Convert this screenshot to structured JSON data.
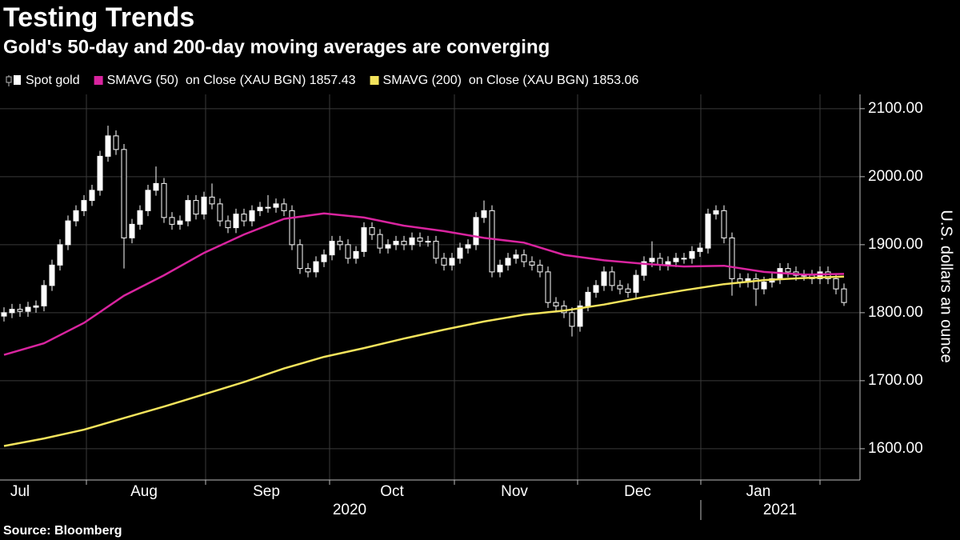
{
  "chart_data": {
    "type": "candlestick",
    "title": "Testing Trends",
    "subtitle": "Gold's 50-day and 200-day moving averages are converging",
    "y_label": "U.S. dollars an ounce",
    "source": "Source: Bloomberg",
    "xlim": [
      -0.5,
      107
    ],
    "xticks": [
      {
        "value": 2,
        "label": "Jul"
      },
      {
        "value": 17.5,
        "label": "Aug"
      },
      {
        "value": 32.8,
        "label": "Sep"
      },
      {
        "value": 48.5,
        "label": "Oct"
      },
      {
        "value": 63.8,
        "label": "Nov"
      },
      {
        "value": 79.2,
        "label": "Dec"
      },
      {
        "value": 94.3,
        "label": "Jan"
      }
    ],
    "month_boundaries": [
      10.3,
      25.2,
      40.7,
      56.3,
      71.7,
      87.1,
      102
    ],
    "year_labels": [
      {
        "value": 43.2,
        "label": "2020"
      },
      {
        "value": 97,
        "label": "2021"
      }
    ],
    "year_boundary": 87.1,
    "ylim": [
      1554,
      2121
    ],
    "yticks": [
      {
        "value": 1600,
        "label": "1600.00"
      },
      {
        "value": 1700,
        "label": "1700.00"
      },
      {
        "value": 1800,
        "label": "1800.00"
      },
      {
        "value": 1900,
        "label": "1900.00"
      },
      {
        "value": 2000,
        "label": "2000.00"
      },
      {
        "value": 2100,
        "label": "2100.00"
      }
    ],
    "grid": true,
    "series": [
      {
        "name": "Spot gold",
        "type": "candlestick",
        "color": "#ffffff",
        "open": [
          1795,
          1800,
          1805,
          1802,
          1808,
          1810,
          1840,
          1870,
          1900,
          1935,
          1950,
          1965,
          1980,
          2030,
          2060,
          2040,
          1910,
          1930,
          1950,
          1980,
          1990,
          1940,
          1930,
          1935,
          1965,
          1945,
          1970,
          1960,
          1935,
          1925,
          1945,
          1935,
          1950,
          1955,
          1955,
          1960,
          1950,
          1900,
          1865,
          1860,
          1875,
          1885,
          1905,
          1900,
          1880,
          1890,
          1925,
          1915,
          1895,
          1900,
          1905,
          1900,
          1910,
          1905,
          1905,
          1880,
          1870,
          1880,
          1895,
          1900,
          1940,
          1950,
          1860,
          1870,
          1880,
          1885,
          1875,
          1870,
          1860,
          1815,
          1810,
          1800,
          1780,
          1810,
          1830,
          1840,
          1860,
          1840,
          1835,
          1830,
          1855,
          1875,
          1880,
          1870,
          1875,
          1880,
          1880,
          1890,
          1895,
          1945,
          1950,
          1910,
          1850,
          1845,
          1850,
          1835,
          1845,
          1850,
          1865,
          1860,
          1855,
          1855,
          1850,
          1860,
          1850,
          1835
        ],
        "high": [
          1808,
          1813,
          1813,
          1816,
          1818,
          1848,
          1878,
          1908,
          1943,
          1958,
          1973,
          1988,
          2038,
          2075,
          2068,
          2048,
          1938,
          1958,
          1988,
          2015,
          1998,
          1948,
          1943,
          1973,
          1973,
          1978,
          1990,
          1968,
          1943,
          1953,
          1953,
          1958,
          1963,
          1973,
          1968,
          1968,
          1958,
          1908,
          1873,
          1883,
          1893,
          1913,
          1913,
          1908,
          1898,
          1933,
          1933,
          1923,
          1908,
          1913,
          1913,
          1918,
          1918,
          1913,
          1913,
          1888,
          1888,
          1903,
          1908,
          1948,
          1965,
          1958,
          1878,
          1888,
          1893,
          1893,
          1883,
          1878,
          1868,
          1823,
          1818,
          1808,
          1818,
          1838,
          1848,
          1868,
          1868,
          1848,
          1843,
          1863,
          1883,
          1905,
          1888,
          1883,
          1888,
          1888,
          1898,
          1903,
          1953,
          1958,
          1958,
          1918,
          1858,
          1858,
          1858,
          1853,
          1858,
          1873,
          1873,
          1868,
          1863,
          1863,
          1868,
          1868,
          1858,
          1843
        ],
        "low": [
          1787,
          1792,
          1794,
          1794,
          1800,
          1802,
          1832,
          1862,
          1892,
          1927,
          1942,
          1957,
          1972,
          2022,
          2032,
          1865,
          1902,
          1922,
          1942,
          1972,
          1932,
          1922,
          1922,
          1927,
          1937,
          1937,
          1952,
          1927,
          1917,
          1917,
          1927,
          1927,
          1942,
          1947,
          1947,
          1942,
          1892,
          1857,
          1852,
          1852,
          1867,
          1877,
          1892,
          1872,
          1872,
          1882,
          1907,
          1887,
          1887,
          1892,
          1892,
          1892,
          1897,
          1897,
          1872,
          1862,
          1862,
          1872,
          1887,
          1892,
          1932,
          1852,
          1852,
          1862,
          1872,
          1867,
          1862,
          1852,
          1807,
          1802,
          1792,
          1765,
          1772,
          1802,
          1822,
          1832,
          1832,
          1827,
          1822,
          1822,
          1847,
          1867,
          1862,
          1862,
          1867,
          1872,
          1872,
          1882,
          1887,
          1937,
          1902,
          1825,
          1837,
          1837,
          1810,
          1827,
          1837,
          1842,
          1852,
          1847,
          1847,
          1842,
          1842,
          1842,
          1827,
          1810
        ],
        "close": [
          1800,
          1805,
          1802,
          1808,
          1810,
          1840,
          1870,
          1900,
          1935,
          1950,
          1965,
          1980,
          2030,
          2060,
          2040,
          1910,
          1930,
          1950,
          1980,
          1990,
          1940,
          1930,
          1935,
          1965,
          1945,
          1970,
          1960,
          1935,
          1925,
          1945,
          1935,
          1950,
          1955,
          1955,
          1960,
          1950,
          1900,
          1865,
          1860,
          1875,
          1885,
          1905,
          1900,
          1880,
          1890,
          1925,
          1915,
          1895,
          1900,
          1905,
          1900,
          1910,
          1905,
          1905,
          1880,
          1870,
          1880,
          1895,
          1900,
          1940,
          1950,
          1860,
          1870,
          1880,
          1885,
          1875,
          1870,
          1860,
          1815,
          1810,
          1800,
          1780,
          1810,
          1830,
          1840,
          1860,
          1840,
          1835,
          1830,
          1855,
          1875,
          1880,
          1870,
          1875,
          1880,
          1880,
          1890,
          1895,
          1945,
          1950,
          1910,
          1850,
          1845,
          1850,
          1835,
          1845,
          1850,
          1865,
          1860,
          1855,
          1855,
          1850,
          1860,
          1850,
          1835,
          1815
        ]
      },
      {
        "name": "SMAVG (50)  on Close (XAU BGN) 1857.43",
        "type": "line",
        "color": "#d9249f",
        "x": [
          0,
          5,
          10,
          15,
          20,
          25,
          30,
          35,
          40,
          45,
          50,
          55,
          60,
          65,
          70,
          75,
          80,
          85,
          90,
          95,
          100,
          105
        ],
        "values": [
          1738,
          1755,
          1785,
          1825,
          1855,
          1888,
          1915,
          1938,
          1946,
          1940,
          1928,
          1920,
          1910,
          1903,
          1885,
          1877,
          1872,
          1868,
          1869,
          1860,
          1856,
          1857
        ]
      },
      {
        "name": "SMAVG (200)  on Close (XAU BGN) 1853.06",
        "type": "line",
        "color": "#f3e35c",
        "x": [
          0,
          5,
          10,
          15,
          20,
          25,
          30,
          35,
          40,
          45,
          50,
          55,
          60,
          65,
          70,
          75,
          80,
          85,
          90,
          95,
          100,
          105
        ],
        "values": [
          1604,
          1615,
          1628,
          1645,
          1662,
          1680,
          1698,
          1718,
          1735,
          1748,
          1762,
          1775,
          1787,
          1797,
          1803,
          1812,
          1823,
          1833,
          1842,
          1848,
          1851,
          1853
        ]
      }
    ]
  }
}
